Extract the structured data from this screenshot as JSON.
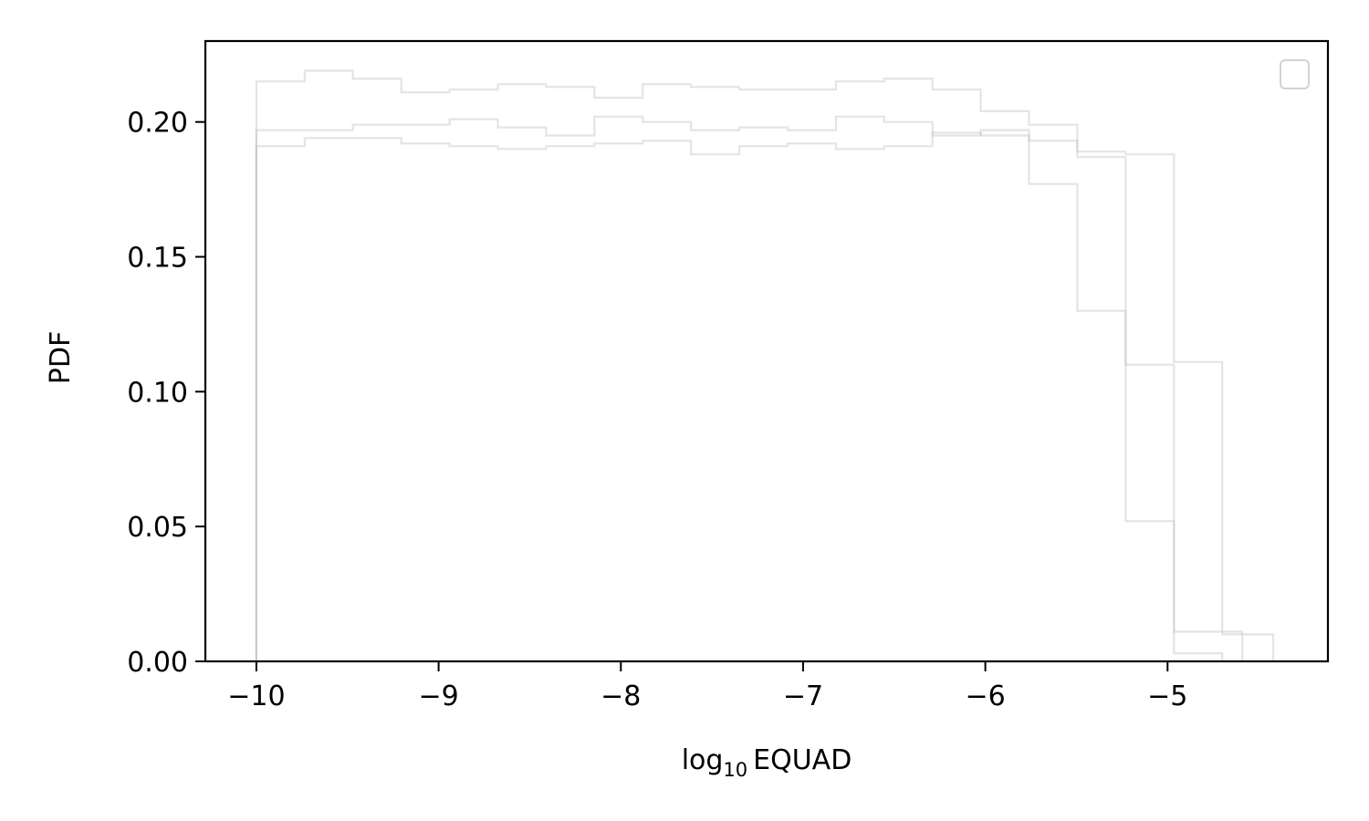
{
  "chart_data": {
    "type": "histogram",
    "xlabel": {
      "prefix": "log",
      "subscript": "10",
      "suffix": "EQUAD"
    },
    "ylabel": "PDF",
    "xlim": [
      -10.28,
      -4.12
    ],
    "ylim": [
      0,
      0.23
    ],
    "x_ticks": [
      -10,
      -9,
      -8,
      -7,
      -6,
      -5
    ],
    "x_tick_labels": [
      "−10",
      "−9",
      "−8",
      "−7",
      "−6",
      "−5"
    ],
    "y_ticks": [
      0.0,
      0.05,
      0.1,
      0.15,
      0.2
    ],
    "y_tick_labels": [
      "0.00",
      "0.05",
      "0.10",
      "0.15",
      "0.20"
    ],
    "grid": false,
    "legend": {
      "placement": "top-right",
      "entries": []
    },
    "series_color": "#bbbbbb",
    "series": [
      {
        "bin_edges": [
          -10.0,
          -9.735,
          -9.47,
          -9.205,
          -8.94,
          -8.675,
          -8.41,
          -8.145,
          -7.88,
          -7.615,
          -7.35,
          -7.085,
          -6.82,
          -6.555,
          -6.29,
          -6.025,
          -5.76,
          -5.495,
          -5.23,
          -4.965,
          -4.7
        ],
        "values": [
          0.197,
          0.197,
          0.199,
          0.199,
          0.201,
          0.198,
          0.195,
          0.202,
          0.2,
          0.197,
          0.198,
          0.197,
          0.202,
          0.2,
          0.195,
          0.197,
          0.177,
          0.13,
          0.052,
          0.003
        ]
      },
      {
        "bin_edges": [
          -10.0,
          -9.735,
          -9.47,
          -9.205,
          -8.94,
          -8.675,
          -8.41,
          -8.145,
          -7.88,
          -7.615,
          -7.35,
          -7.085,
          -6.82,
          -6.555,
          -6.29,
          -6.025,
          -5.76,
          -5.495,
          -5.23,
          -4.965,
          -4.7,
          -4.59
        ],
        "values": [
          0.215,
          0.219,
          0.216,
          0.211,
          0.212,
          0.214,
          0.213,
          0.209,
          0.214,
          0.213,
          0.212,
          0.212,
          0.215,
          0.216,
          0.212,
          0.204,
          0.199,
          0.187,
          0.11,
          0.011,
          0.011
        ]
      },
      {
        "bin_edges": [
          -10.0,
          -9.735,
          -9.47,
          -9.205,
          -8.94,
          -8.675,
          -8.41,
          -8.145,
          -7.88,
          -7.615,
          -7.35,
          -7.085,
          -6.82,
          -6.555,
          -6.29,
          -6.025,
          -5.76,
          -5.495,
          -5.23,
          -4.965,
          -4.7,
          -4.42
        ],
        "values": [
          0.191,
          0.194,
          0.194,
          0.192,
          0.191,
          0.19,
          0.191,
          0.192,
          0.193,
          0.188,
          0.191,
          0.192,
          0.19,
          0.191,
          0.196,
          0.195,
          0.193,
          0.189,
          0.188,
          0.111,
          0.01
        ]
      }
    ]
  }
}
